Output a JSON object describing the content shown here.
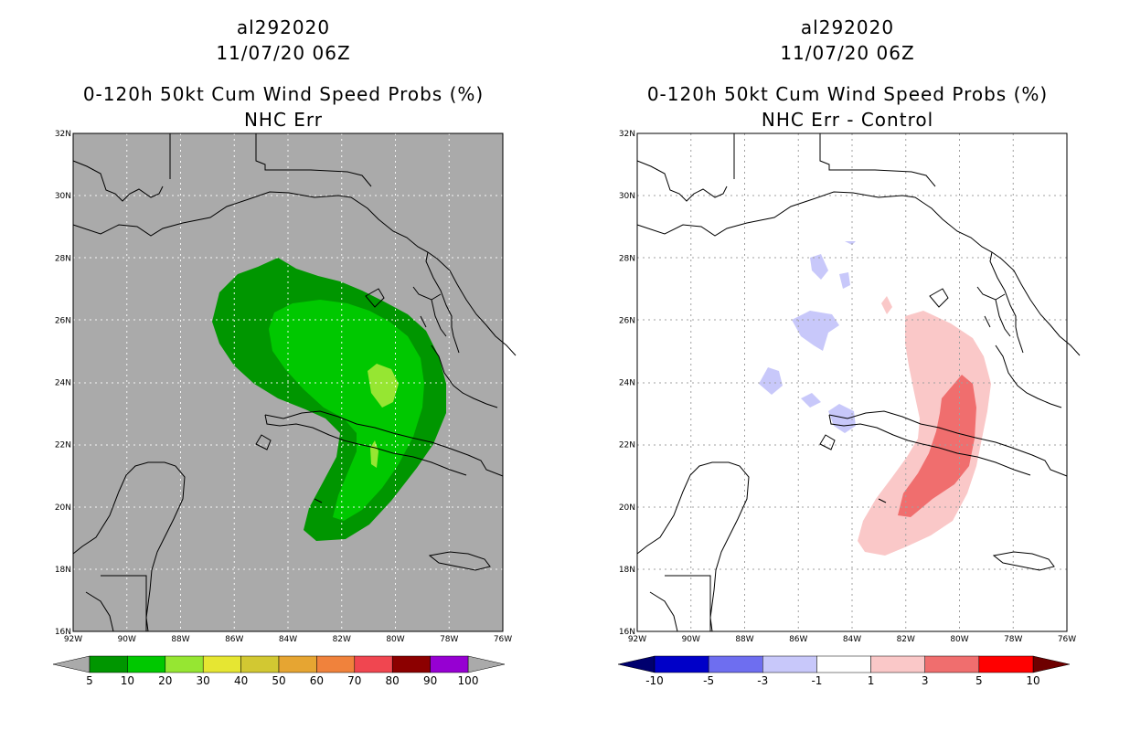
{
  "left_panel": {
    "title_line1": "al292020",
    "title_line2": "11/07/20 06Z",
    "title_line3": "0-120h 50kt Cum Wind Speed Probs (%)",
    "title_line4": "NHC Err",
    "colorbar": {
      "colors": [
        "#009600",
        "#00c800",
        "#96e632",
        "#e6e632",
        "#d2c832",
        "#e6a532",
        "#f0823c",
        "#f04650",
        "#8c0000",
        "#9600d2"
      ],
      "labels": [
        "5",
        "10",
        "20",
        "30",
        "40",
        "50",
        "60",
        "70",
        "80",
        "90",
        "100"
      ]
    }
  },
  "right_panel": {
    "title_line1": "al292020",
    "title_line2": "11/07/20 06Z",
    "title_line3": "0-120h 50kt Cum Wind Speed Probs (%)",
    "title_line4": "NHC Err - Control",
    "colorbar": {
      "colors": [
        "#0000c8",
        "#6e6ef0",
        "#c8c8fa",
        "#ffffff",
        "#fac8c8",
        "#f06e6e",
        "#ff0000"
      ],
      "labels": [
        "-10",
        "-5",
        "-3",
        "-1",
        "1",
        "3",
        "5",
        "10"
      ]
    }
  },
  "axes": {
    "lat_labels": [
      "16N",
      "18N",
      "20N",
      "22N",
      "24N",
      "26N",
      "28N",
      "30N",
      "32N"
    ],
    "lon_labels": [
      "92W",
      "90W",
      "88W",
      "86W",
      "84W",
      "82W",
      "80W",
      "78W",
      "76W"
    ]
  },
  "colors": {
    "land_gray": "#aaaaaa",
    "dark_green": "#009600",
    "green": "#00c800",
    "light_green": "#96e632",
    "pink_light": "#fac8c8",
    "pink": "#f06e6e",
    "blue_light": "#c8c8fa"
  }
}
